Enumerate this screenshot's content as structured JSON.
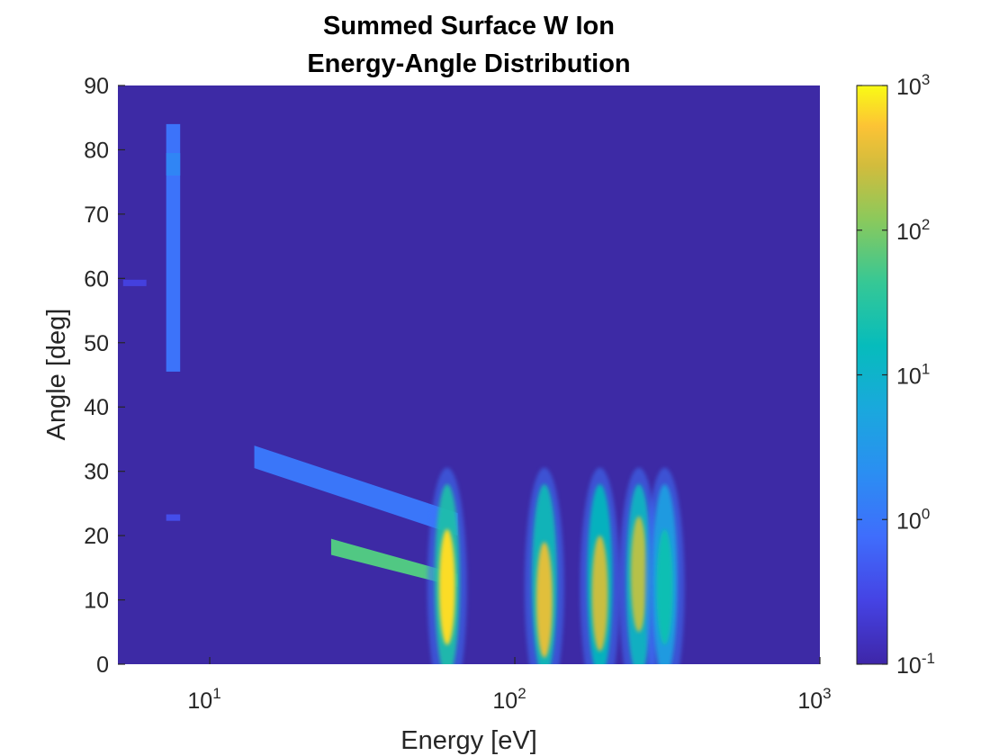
{
  "chart_data": {
    "type": "heatmap",
    "title": [
      "Summed Surface W Ion",
      "Energy-Angle Distribution"
    ],
    "xlabel": "Energy [eV]",
    "ylabel": "Angle [deg]",
    "x_scale": "log",
    "xlim": [
      5,
      1000
    ],
    "ylim": [
      0,
      90
    ],
    "x_ticks": [
      {
        "value": 10,
        "base": "10",
        "exp": "1"
      },
      {
        "value": 100,
        "base": "10",
        "exp": "2"
      },
      {
        "value": 1000,
        "base": "10",
        "exp": "3"
      }
    ],
    "y_ticks": [
      0,
      10,
      20,
      30,
      40,
      50,
      60,
      70,
      80,
      90
    ],
    "colorbar": {
      "scale": "log",
      "range": [
        0.1,
        1000
      ],
      "colormap": "parula",
      "ticks": [
        {
          "value": 0.1,
          "base": "10",
          "exp": "-1"
        },
        {
          "value": 1,
          "base": "10",
          "exp": "0"
        },
        {
          "value": 10,
          "base": "10",
          "exp": "1"
        },
        {
          "value": 100,
          "base": "10",
          "exp": "2"
        },
        {
          "value": 1000,
          "base": "10",
          "exp": "3"
        }
      ]
    },
    "background_color": "#3d2aa5",
    "features": [
      {
        "kind": "band",
        "x": [
          7.2,
          8.0
        ],
        "y": [
          45.5,
          84
        ],
        "level": 0.9
      },
      {
        "kind": "blob",
        "x": [
          7.2,
          8.0
        ],
        "y": [
          76,
          79.5
        ],
        "level": 1.6
      },
      {
        "kind": "band",
        "x": [
          5.2,
          6.2
        ],
        "y": [
          58.8,
          59.8
        ],
        "level": 0.25
      },
      {
        "kind": "band",
        "x": [
          7.2,
          8.0
        ],
        "y": [
          22.3,
          23.3
        ],
        "level": 0.35
      },
      {
        "kind": "streak",
        "x": [
          14,
          65
        ],
        "y_start": [
          30.5,
          34
        ],
        "y_end": [
          20,
          23.5
        ],
        "level": 1.0
      },
      {
        "kind": "streak",
        "x": [
          25,
          65
        ],
        "y_start": [
          17,
          19.5
        ],
        "y_end": [
          12,
          14
        ],
        "level": 60
      },
      {
        "kind": "peak",
        "center_energy": 60,
        "center_angle": 12,
        "level": 700
      },
      {
        "kind": "peak",
        "center_energy": 125,
        "center_angle": 10,
        "level": 350
      },
      {
        "kind": "peak",
        "center_energy": 190,
        "center_angle": 11,
        "level": 250
      },
      {
        "kind": "peak",
        "center_energy": 255,
        "center_angle": 14,
        "level": 200
      },
      {
        "kind": "peak",
        "center_energy": 310,
        "center_angle": 12,
        "level": 20
      }
    ]
  }
}
